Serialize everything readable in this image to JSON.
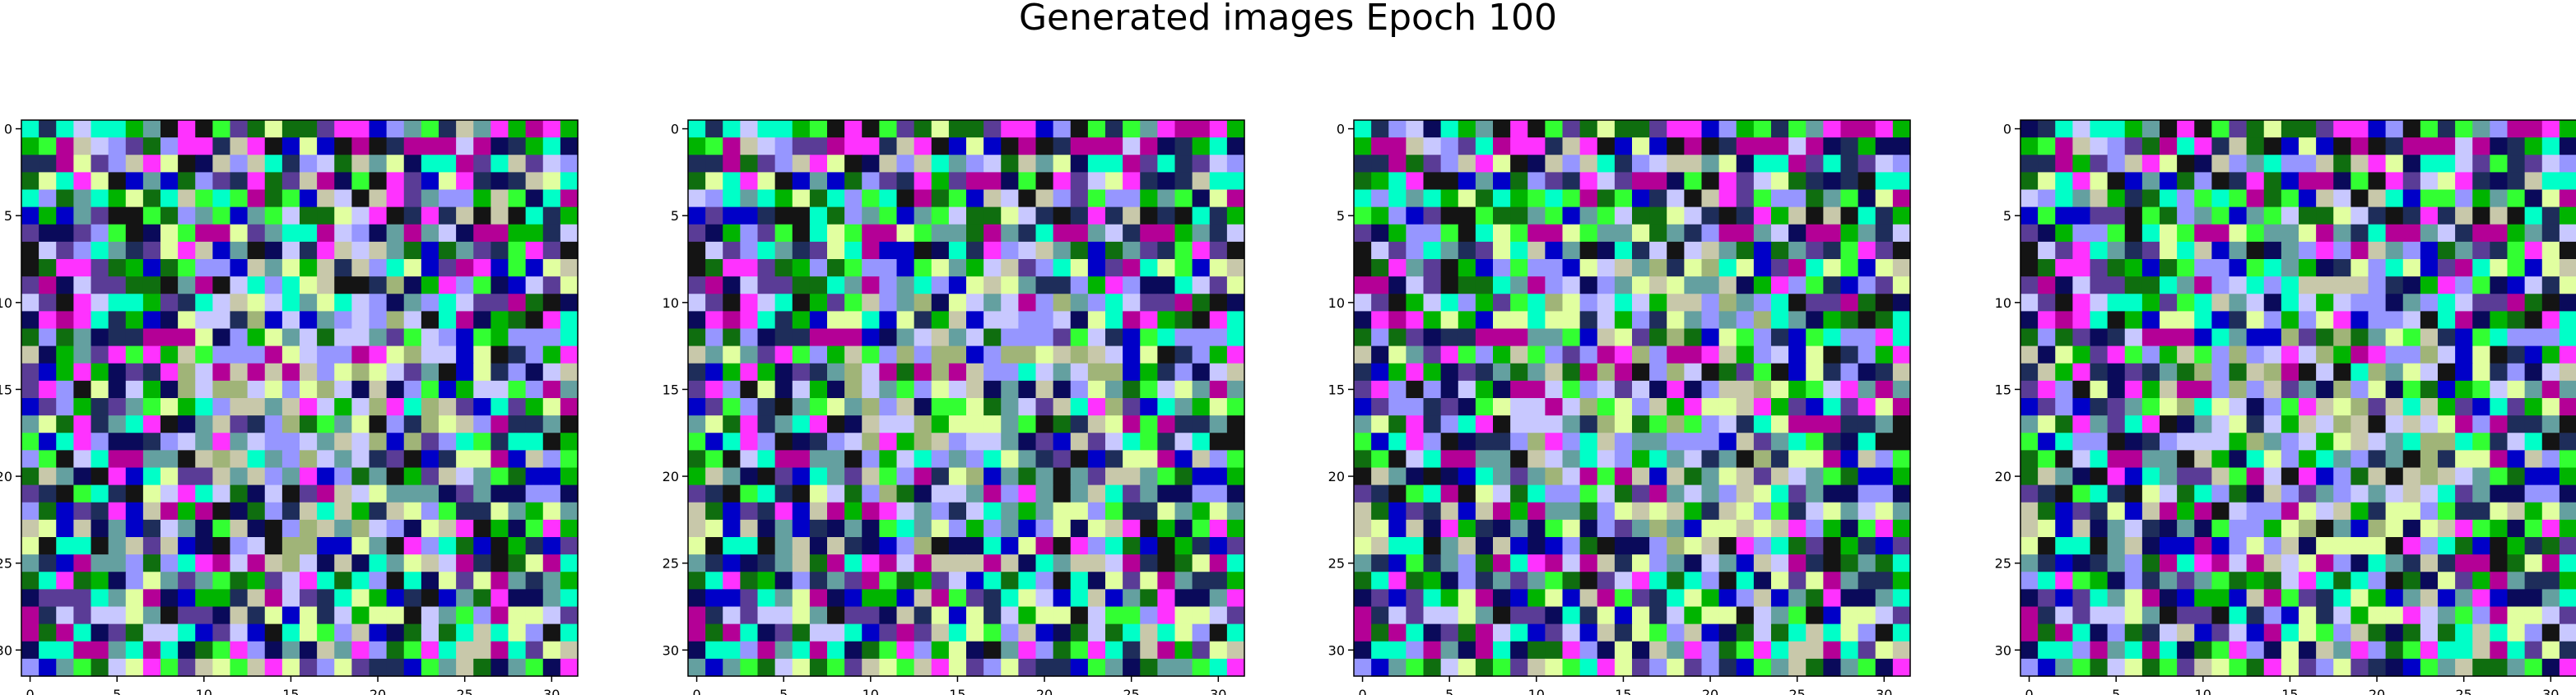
{
  "figure": {
    "title": "Generated images Epoch 100"
  },
  "chart_data": {
    "type": "heatmap",
    "image_grid": {
      "rows": 32,
      "cols": 32
    },
    "panel_count": 4,
    "xticks": [
      0,
      5,
      10,
      15,
      20,
      25,
      30
    ],
    "yticks": [
      0,
      5,
      10,
      15,
      20,
      25,
      30
    ],
    "xlim": [
      -0.5,
      31.5
    ],
    "ylim": [
      31.5,
      -0.5
    ],
    "palette": [
      "#0a0a5a",
      "#0000c8",
      "#00b400",
      "#0f6e0f",
      "#1e2d5a",
      "#32ff32",
      "#b40096",
      "#9696ff",
      "#c8c8aa",
      "#e1ffa0",
      "#00ffc8",
      "#141414",
      "#5a3c96",
      "#ff32ff",
      "#64a0a0",
      "#c8c8ff"
    ],
    "noise_seed": 12345,
    "grid": false,
    "legend": "none"
  }
}
